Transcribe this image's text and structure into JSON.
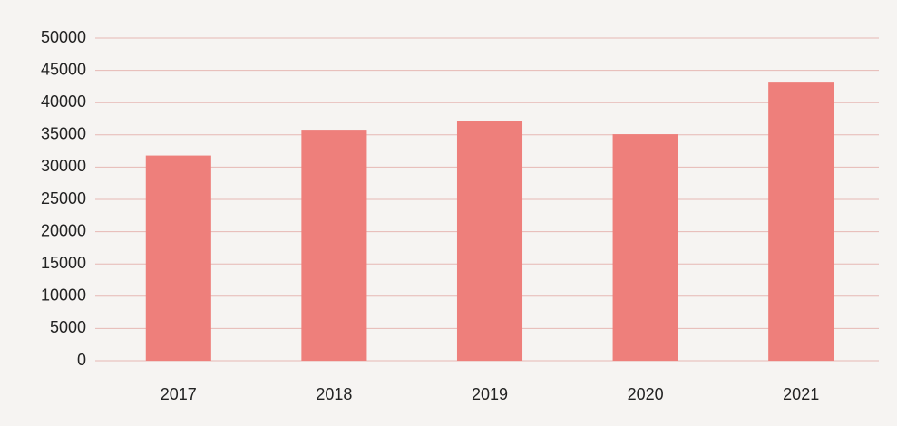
{
  "chart_data": {
    "type": "bar",
    "categories": [
      "2017",
      "2018",
      "2019",
      "2020",
      "2021"
    ],
    "values": [
      31800,
      35800,
      37200,
      35100,
      43100
    ],
    "color": "#ee7f7b",
    "ylim": [
      0,
      50000
    ],
    "yticks": [
      0,
      5000,
      10000,
      15000,
      20000,
      25000,
      30000,
      35000,
      40000,
      45000,
      50000
    ],
    "grid": true
  }
}
